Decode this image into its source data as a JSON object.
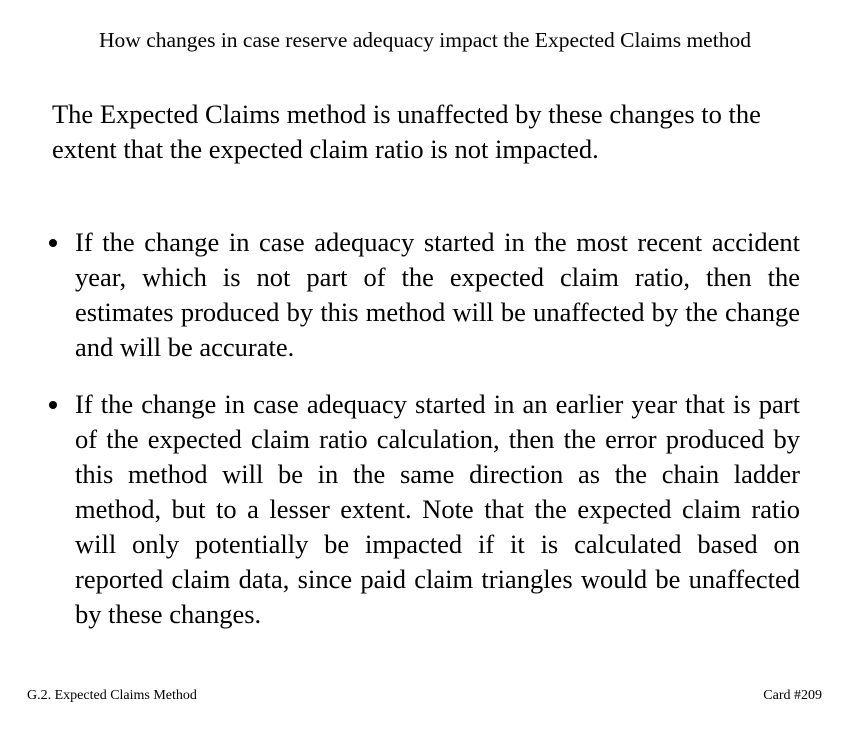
{
  "card": {
    "title": "How changes in case reserve adequacy impact the Expected Claims method",
    "intro": "The Expected Claims method is unaffected by these changes to the extent that the expected claim ratio is not impacted.",
    "bullets": [
      {
        "text": "If the change in case adequacy started in the most recent accident year, which is not part of the expected claim ratio, then the estimates produced by this method will be unaffected by the change and will be accurate."
      },
      {
        "text": "If the change in case adequacy started in an earlier year that is part of the expected claim ratio calculation, then the error produced by this method will be in the same direction as the chain ladder method, but to a lesser extent.  Note that the expected claim ratio will only potentially be impacted if it is calculated based on reported claim data, since paid claim triangles would be unaffected by these changes."
      }
    ]
  },
  "footer": {
    "section": "G.2. Expected Claims Method",
    "card_number": "Card #209"
  }
}
